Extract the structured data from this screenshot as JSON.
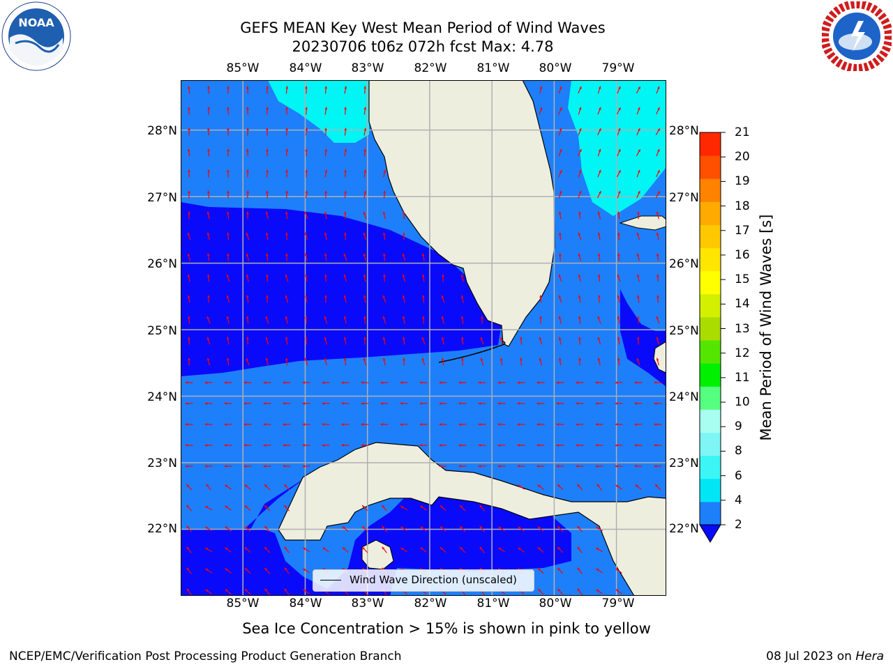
{
  "header": {
    "title_line1": "GEFS MEAN Key West Mean Period of Wind Waves",
    "title_line2": "20230706 t06z 072h fcst   Max: 4.78"
  },
  "logos": {
    "left": "noaa-logo",
    "right": "nws-logo"
  },
  "map": {
    "lon_labels": [
      "85°W",
      "84°W",
      "83°W",
      "82°W",
      "81°W",
      "80°W",
      "79°W"
    ],
    "lat_labels": [
      "28°N",
      "27°N",
      "26°N",
      "25°N",
      "24°N",
      "23°N",
      "22°N"
    ],
    "extent": {
      "lon": [
        -86.0,
        -78.2
      ],
      "lat": [
        21.0,
        28.75
      ]
    },
    "colors": {
      "band_2_4": "#1e7ffa",
      "below_2": "#0a0afa",
      "band_4_6": "#00f5f5",
      "land": "#eeeedf",
      "arrows": "#ff0000",
      "grid": "#b0b0b0"
    }
  },
  "colorbar": {
    "label": "Mean Period of Wind Waves [s]",
    "ticks": [
      "2",
      "4",
      "6",
      "8",
      "9",
      "10",
      "11",
      "12",
      "13",
      "14",
      "15",
      "16",
      "17",
      "18",
      "19",
      "20",
      "21"
    ],
    "colors": [
      "#1e7ffa",
      "#00e6f5",
      "#3cf5f5",
      "#7ff5f5",
      "#a8fff0",
      "#55ff7f",
      "#00f000",
      "#55e600",
      "#aadc00",
      "#d2f000",
      "#ffff00",
      "#ffe600",
      "#ffc800",
      "#ffaa00",
      "#ff8200",
      "#ff5000",
      "#ff2800",
      "#ff0000"
    ],
    "extend_color": "#0a0afa"
  },
  "legend": {
    "label": "Wind Wave Direction (unscaled)"
  },
  "note": "Sea Ice Concentration > 15% is shown in pink to yellow",
  "footer": {
    "left": "NCEP/EMC/Verification Post Processing Product Generation Branch",
    "date": "08 Jul 2023 on ",
    "machine": "Hera"
  }
}
